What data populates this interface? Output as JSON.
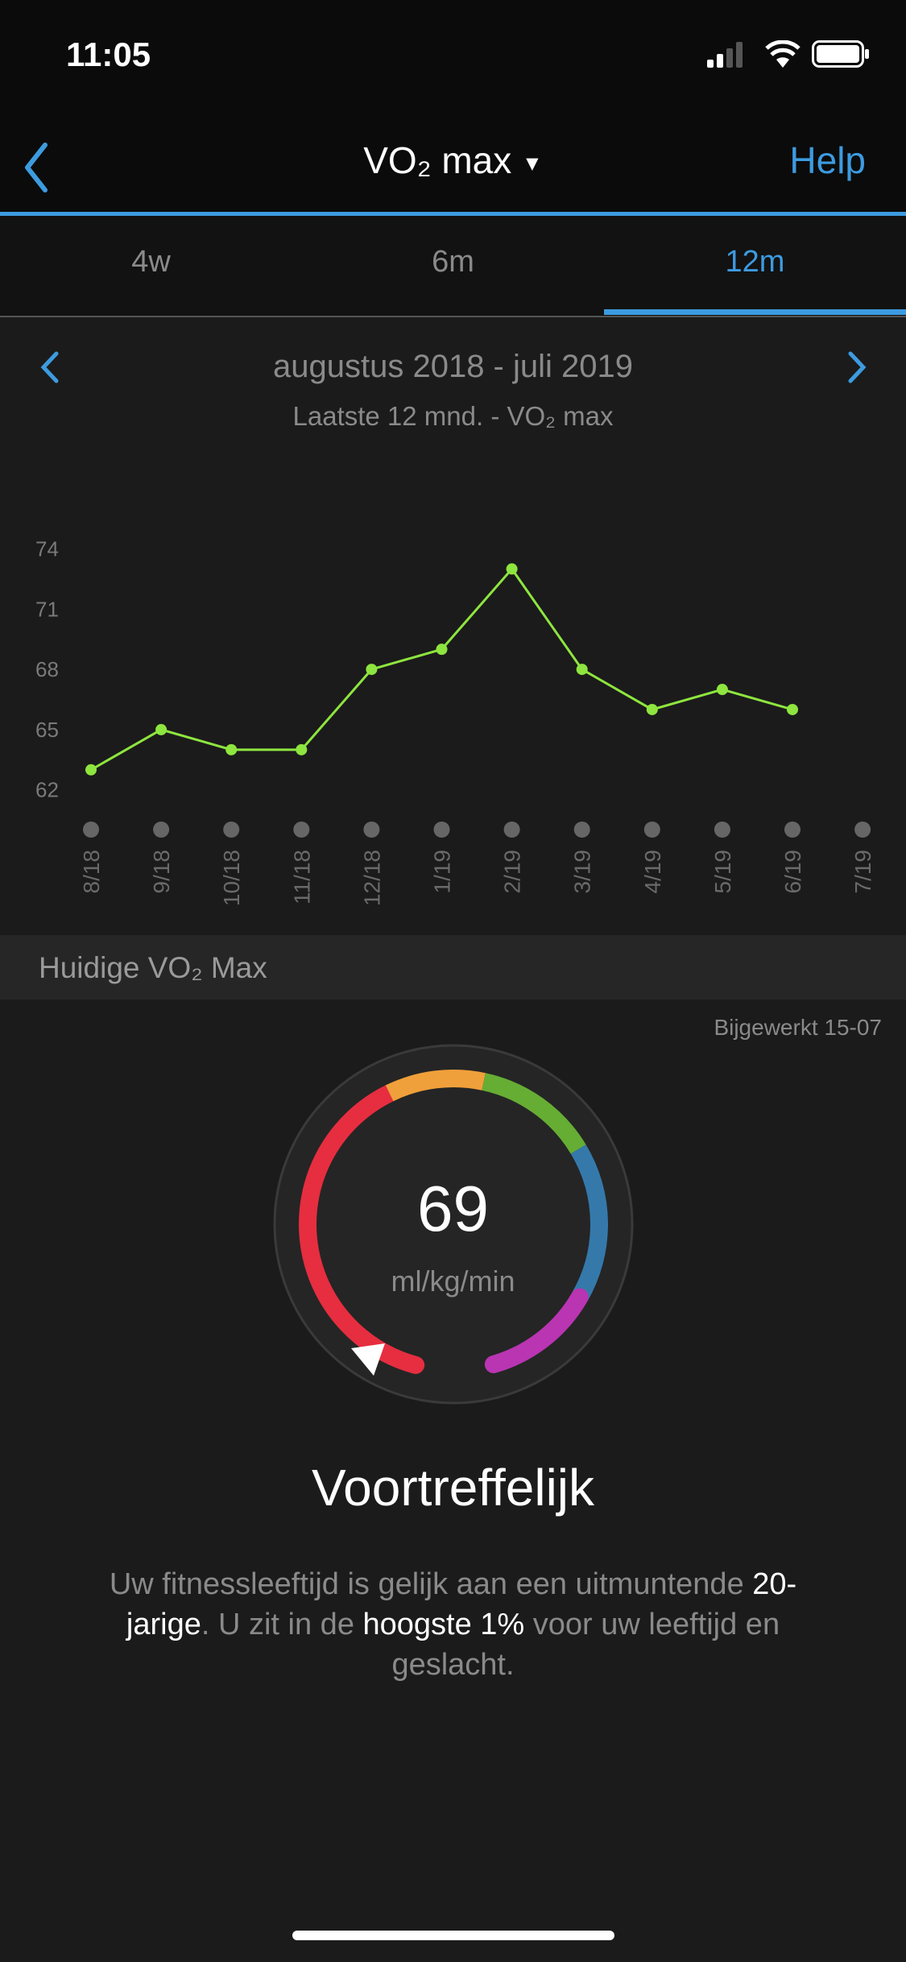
{
  "status_bar": {
    "time": "11:05"
  },
  "nav": {
    "title": "VO₂ max",
    "dropdown_icon": "caret-down-icon",
    "back_icon": "chevron-left-icon",
    "help_label": "Help"
  },
  "tabs": [
    {
      "label": "4w",
      "active": false
    },
    {
      "label": "6m",
      "active": false
    },
    {
      "label": "12m",
      "active": true
    }
  ],
  "period": {
    "title": "augustus 2018 - juli 2019",
    "subtitle": "Laatste 12 mnd. - VO₂ max"
  },
  "chart_data": {
    "type": "line",
    "categories": [
      "8/18",
      "9/18",
      "10/18",
      "11/18",
      "12/18",
      "1/19",
      "2/19",
      "3/19",
      "4/19",
      "5/19",
      "6/19",
      "7/19"
    ],
    "values": [
      63,
      65,
      64,
      64,
      68,
      69,
      73,
      68,
      66,
      67,
      66,
      null
    ],
    "yticks": [
      74,
      71,
      68,
      65,
      62
    ],
    "ylim": [
      62,
      74
    ],
    "line_color": "#8ee53f",
    "grid": false
  },
  "current": {
    "section_title": "Huidige VO₂ Max",
    "updated": "Bijgewerkt 15-07",
    "value": "69",
    "unit": "ml/kg/min",
    "rating": "Voortreffelijk",
    "gauge_colors": [
      "#e62e40",
      "#f0a03a",
      "#66ad34",
      "#3579ab",
      "#b935b2"
    ],
    "description": [
      {
        "text": "Uw fitnessleeftijd is gelijk aan een uitmuntende ",
        "hl": false
      },
      {
        "text": "20-jarige",
        "hl": true
      },
      {
        "text": ". U zit in de ",
        "hl": false
      },
      {
        "text": "hoogste 1%",
        "hl": true
      },
      {
        "text": " voor uw leeftijd en geslacht.",
        "hl": false
      }
    ]
  }
}
